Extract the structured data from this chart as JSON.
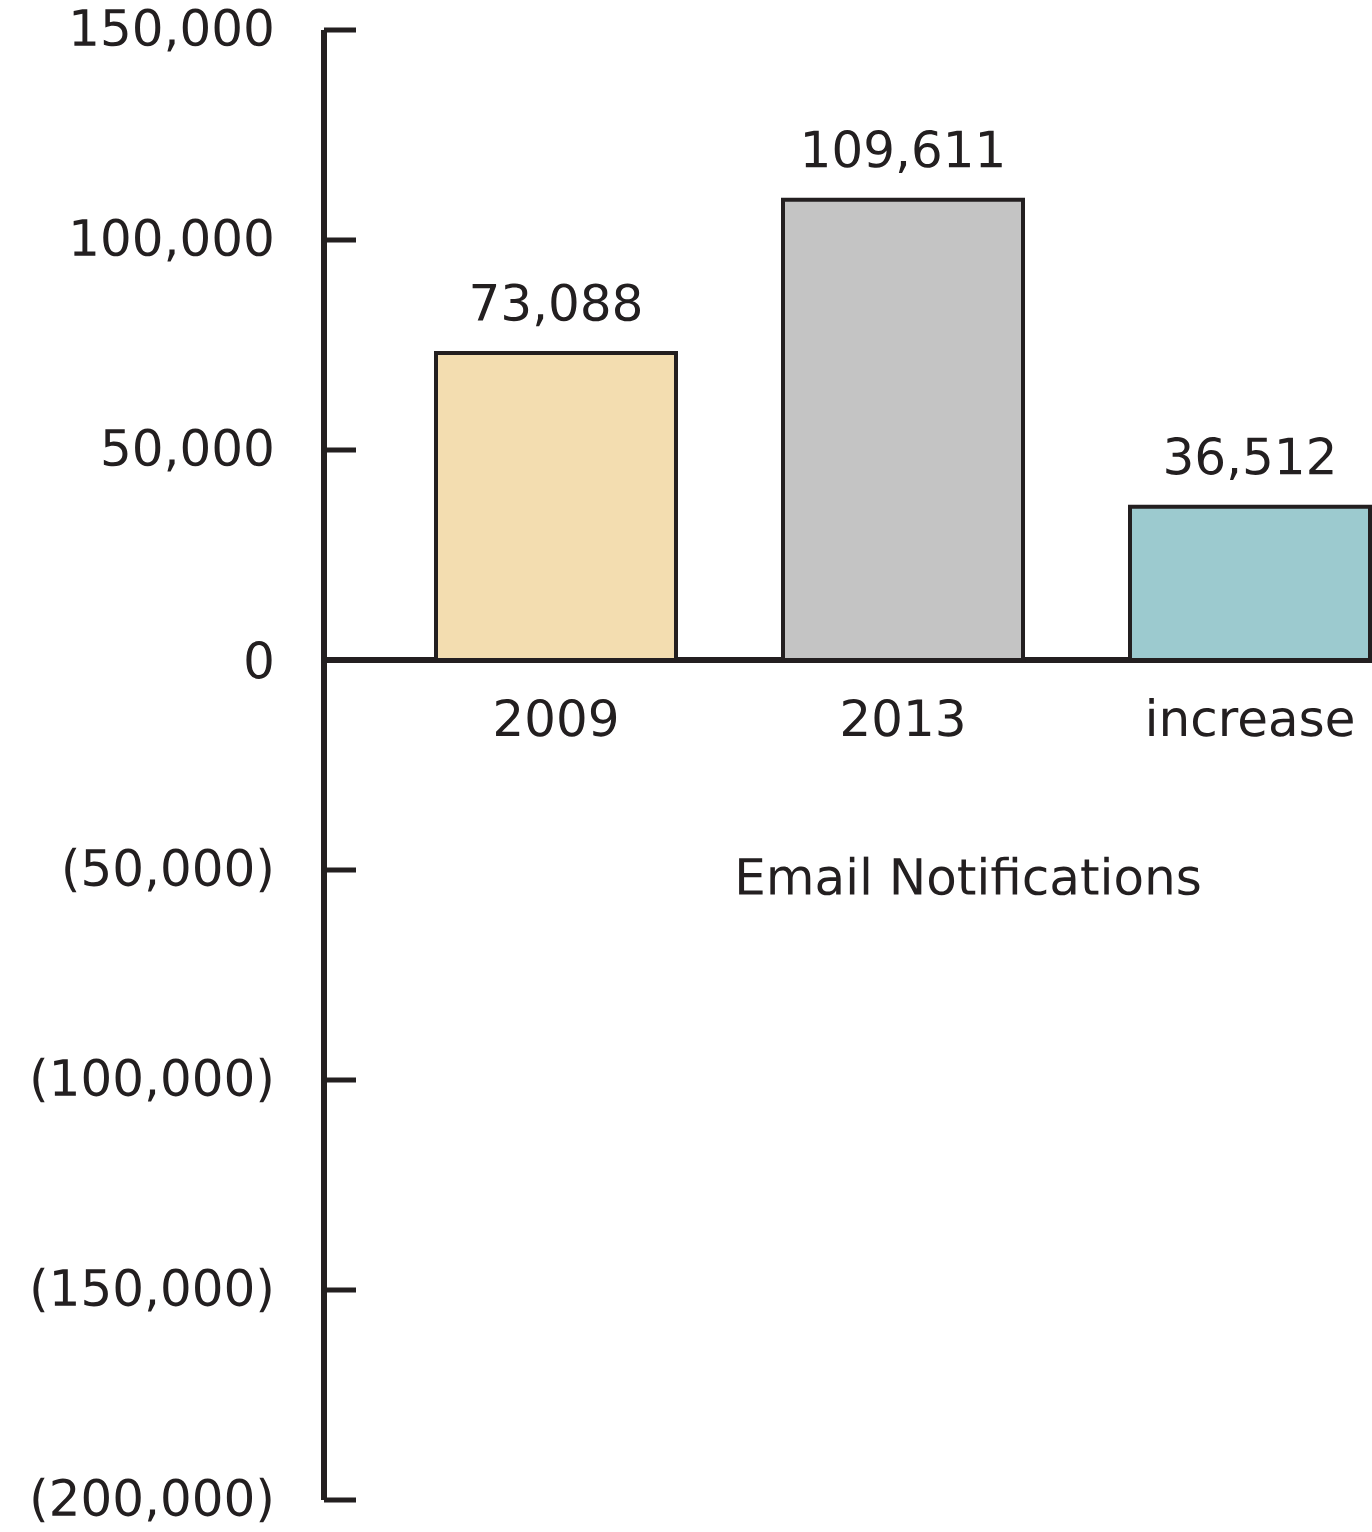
{
  "chart_data": {
    "type": "bar",
    "categories": [
      "2009",
      "2013",
      "increase"
    ],
    "values": [
      73088,
      109611,
      36512
    ],
    "colors": [
      "#f3ddb0",
      "#c4c4c4",
      "#9ccacf"
    ],
    "value_labels": [
      "73,088",
      "109,611",
      "36,512"
    ],
    "xlabel": "Email Notifications",
    "ylim": [
      -200000,
      150000
    ],
    "yticks": [
      {
        "value": -200000,
        "label": "(200,000)"
      },
      {
        "value": -150000,
        "label": "(150,000)"
      },
      {
        "value": -100000,
        "label": "(100,000)"
      },
      {
        "value": -50000,
        "label": "(50,000)"
      },
      0,
      {
        "value": 50000,
        "label": "50,000"
      },
      {
        "value": 100000,
        "label": "100,000"
      },
      {
        "value": 150000,
        "label": "150,000"
      }
    ]
  }
}
